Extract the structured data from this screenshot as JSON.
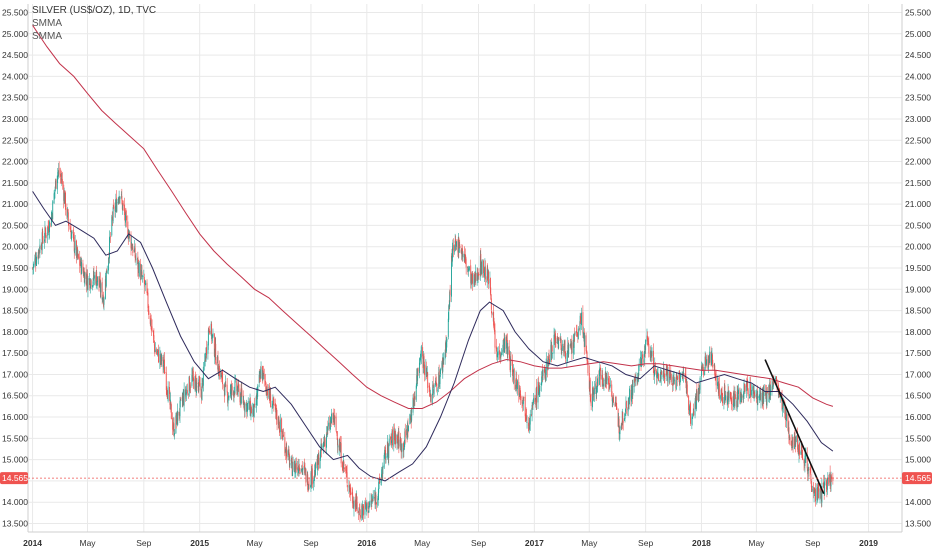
{
  "legend": {
    "title": "SILVER (US$/OZ), 1D, TVC",
    "ind1": "SMMA",
    "ind2": "SMMA"
  },
  "price_tag": "14.565",
  "colors": {
    "up": "#26a69a",
    "down": "#ef5350",
    "smma_fast": "#2e2a5c",
    "smma_slow": "#c2324a",
    "trend": "#111111",
    "price_line": "#ef5350",
    "grid": "#e9e9e9"
  },
  "chart_data": {
    "type": "candlestick",
    "title": "SILVER (US$/OZ), 1D, TVC",
    "x_tick_labels": [
      "2014",
      "May",
      "Sep",
      "2015",
      "May",
      "Sep",
      "2016",
      "May",
      "Sep",
      "2017",
      "May",
      "Sep",
      "2018",
      "May",
      "Sep",
      "2019"
    ],
    "y_ticks": [
      "13.500",
      "14.000",
      "14.500",
      "15.000",
      "15.500",
      "16.000",
      "16.500",
      "17.000",
      "17.500",
      "18.000",
      "18.500",
      "19.000",
      "19.500",
      "20.000",
      "20.500",
      "21.000",
      "21.500",
      "22.000",
      "22.500",
      "23.000",
      "23.500",
      "24.000",
      "24.500",
      "25.000",
      "25.500"
    ],
    "ylim": [
      13.3,
      25.7
    ],
    "last_price": 14.565,
    "close_path": [
      [
        "2014-01-01",
        19.5
      ],
      [
        "2014-01-20",
        20.1
      ],
      [
        "2014-02-10",
        20.6
      ],
      [
        "2014-02-24",
        21.8
      ],
      [
        "2014-03-05",
        21.6
      ],
      [
        "2014-03-20",
        20.6
      ],
      [
        "2014-04-10",
        19.7
      ],
      [
        "2014-05-01",
        19.2
      ],
      [
        "2014-05-20",
        19.3
      ],
      [
        "2014-06-05",
        18.8
      ],
      [
        "2014-06-25",
        20.7
      ],
      [
        "2014-07-10",
        21.3
      ],
      [
        "2014-07-25",
        20.5
      ],
      [
        "2014-08-15",
        19.7
      ],
      [
        "2014-09-05",
        19.0
      ],
      [
        "2014-09-25",
        17.6
      ],
      [
        "2014-10-15",
        17.2
      ],
      [
        "2014-11-05",
        15.7
      ],
      [
        "2014-11-25",
        16.4
      ],
      [
        "2014-12-15",
        16.9
      ],
      [
        "2015-01-05",
        16.6
      ],
      [
        "2015-01-22",
        18.2
      ],
      [
        "2015-02-10",
        17.2
      ],
      [
        "2015-03-01",
        16.5
      ],
      [
        "2015-03-20",
        16.7
      ],
      [
        "2015-04-10",
        16.3
      ],
      [
        "2015-05-01",
        16.1
      ],
      [
        "2015-05-15",
        17.1
      ],
      [
        "2015-06-05",
        16.4
      ],
      [
        "2015-06-25",
        15.8
      ],
      [
        "2015-07-20",
        14.8
      ],
      [
        "2015-08-10",
        14.9
      ],
      [
        "2015-08-25",
        14.5
      ],
      [
        "2015-09-10",
        14.7
      ],
      [
        "2015-10-05",
        15.6
      ],
      [
        "2015-10-20",
        16.0
      ],
      [
        "2015-11-10",
        14.9
      ],
      [
        "2015-12-01",
        14.1
      ],
      [
        "2015-12-15",
        13.8
      ],
      [
        "2016-01-05",
        13.9
      ],
      [
        "2016-01-25",
        14.2
      ],
      [
        "2016-02-10",
        15.1
      ],
      [
        "2016-03-01",
        15.6
      ],
      [
        "2016-03-20",
        15.3
      ],
      [
        "2016-04-10",
        16.2
      ],
      [
        "2016-04-28",
        17.6
      ],
      [
        "2016-05-20",
        16.5
      ],
      [
        "2016-06-10",
        17.0
      ],
      [
        "2016-06-25",
        17.9
      ],
      [
        "2016-07-05",
        19.8
      ],
      [
        "2016-07-20",
        20.1
      ],
      [
        "2016-08-05",
        19.6
      ],
      [
        "2016-08-20",
        19.1
      ],
      [
        "2016-09-05",
        19.6
      ],
      [
        "2016-09-25",
        19.2
      ],
      [
        "2016-10-10",
        17.4
      ],
      [
        "2016-10-30",
        17.8
      ],
      [
        "2016-11-15",
        17.0
      ],
      [
        "2016-12-05",
        16.5
      ],
      [
        "2016-12-20",
        15.9
      ],
      [
        "2017-01-05",
        16.5
      ],
      [
        "2017-01-25",
        17.1
      ],
      [
        "2017-02-15",
        17.9
      ],
      [
        "2017-03-05",
        17.6
      ],
      [
        "2017-03-20",
        17.5
      ],
      [
        "2017-04-15",
        18.3
      ],
      [
        "2017-05-05",
        16.4
      ],
      [
        "2017-05-25",
        17.0
      ],
      [
        "2017-06-15",
        16.8
      ],
      [
        "2017-07-05",
        15.8
      ],
      [
        "2017-07-25",
        16.4
      ],
      [
        "2017-08-15",
        17.0
      ],
      [
        "2017-09-05",
        17.8
      ],
      [
        "2017-09-25",
        16.9
      ],
      [
        "2017-10-15",
        17.1
      ],
      [
        "2017-11-05",
        16.8
      ],
      [
        "2017-11-25",
        17.0
      ],
      [
        "2017-12-10",
        15.9
      ],
      [
        "2018-01-05",
        17.2
      ],
      [
        "2018-01-25",
        17.4
      ],
      [
        "2018-02-10",
        16.5
      ],
      [
        "2018-03-01",
        16.5
      ],
      [
        "2018-03-20",
        16.4
      ],
      [
        "2018-04-10",
        16.7
      ],
      [
        "2018-04-30",
        16.5
      ],
      [
        "2018-05-20",
        16.4
      ],
      [
        "2018-06-10",
        16.9
      ],
      [
        "2018-06-28",
        16.2
      ],
      [
        "2018-07-15",
        15.5
      ],
      [
        "2018-08-05",
        15.3
      ],
      [
        "2018-08-20",
        14.9
      ],
      [
        "2018-09-05",
        14.2
      ],
      [
        "2018-09-20",
        14.2
      ],
      [
        "2018-10-05",
        14.5
      ],
      [
        "2018-10-15",
        14.6
      ]
    ],
    "smma_fast": [
      [
        "2014-01-01",
        21.3
      ],
      [
        "2014-01-25",
        20.9
      ],
      [
        "2014-02-20",
        20.5
      ],
      [
        "2014-03-15",
        20.6
      ],
      [
        "2014-04-15",
        20.4
      ],
      [
        "2014-05-15",
        20.2
      ],
      [
        "2014-06-10",
        19.8
      ],
      [
        "2014-07-05",
        19.9
      ],
      [
        "2014-07-30",
        20.3
      ],
      [
        "2014-08-25",
        20.1
      ],
      [
        "2014-09-20",
        19.5
      ],
      [
        "2014-10-20",
        18.7
      ],
      [
        "2014-11-20",
        17.9
      ],
      [
        "2014-12-20",
        17.3
      ],
      [
        "2015-01-20",
        16.9
      ],
      [
        "2015-02-20",
        17.1
      ],
      [
        "2015-03-20",
        16.9
      ],
      [
        "2015-04-20",
        16.7
      ],
      [
        "2015-05-20",
        16.6
      ],
      [
        "2015-06-15",
        16.7
      ],
      [
        "2015-07-20",
        16.3
      ],
      [
        "2015-08-20",
        15.8
      ],
      [
        "2015-09-20",
        15.3
      ],
      [
        "2015-10-20",
        15.0
      ],
      [
        "2015-11-20",
        15.1
      ],
      [
        "2015-12-15",
        14.8
      ],
      [
        "2016-01-10",
        14.6
      ],
      [
        "2016-02-10",
        14.5
      ],
      [
        "2016-03-10",
        14.7
      ],
      [
        "2016-04-10",
        14.9
      ],
      [
        "2016-05-10",
        15.3
      ],
      [
        "2016-06-10",
        16.0
      ],
      [
        "2016-07-10",
        16.8
      ],
      [
        "2016-08-10",
        17.8
      ],
      [
        "2016-09-05",
        18.5
      ],
      [
        "2016-09-25",
        18.7
      ],
      [
        "2016-10-25",
        18.5
      ],
      [
        "2016-11-20",
        18.0
      ],
      [
        "2016-12-20",
        17.6
      ],
      [
        "2017-01-20",
        17.3
      ],
      [
        "2017-02-20",
        17.2
      ],
      [
        "2017-03-20",
        17.3
      ],
      [
        "2017-04-20",
        17.4
      ],
      [
        "2017-05-20",
        17.3
      ],
      [
        "2017-06-20",
        17.2
      ],
      [
        "2017-07-20",
        17.0
      ],
      [
        "2017-08-20",
        16.9
      ],
      [
        "2017-09-20",
        17.2
      ],
      [
        "2017-10-20",
        17.1
      ],
      [
        "2017-11-20",
        17.0
      ],
      [
        "2017-12-20",
        16.8
      ],
      [
        "2018-01-20",
        16.9
      ],
      [
        "2018-02-20",
        17.0
      ],
      [
        "2018-03-20",
        16.9
      ],
      [
        "2018-04-20",
        16.8
      ],
      [
        "2018-05-20",
        16.6
      ],
      [
        "2018-06-20",
        16.6
      ],
      [
        "2018-07-20",
        16.3
      ],
      [
        "2018-08-20",
        15.9
      ],
      [
        "2018-09-20",
        15.4
      ],
      [
        "2018-10-15",
        15.2
      ]
    ],
    "smma_slow": [
      [
        "2014-01-01",
        25.2
      ],
      [
        "2014-02-01",
        24.7
      ],
      [
        "2014-03-01",
        24.3
      ],
      [
        "2014-04-01",
        24.0
      ],
      [
        "2014-05-01",
        23.6
      ],
      [
        "2014-06-01",
        23.2
      ],
      [
        "2014-07-01",
        22.9
      ],
      [
        "2014-08-01",
        22.6
      ],
      [
        "2014-09-01",
        22.3
      ],
      [
        "2014-10-01",
        21.8
      ],
      [
        "2014-11-01",
        21.3
      ],
      [
        "2014-12-01",
        20.8
      ],
      [
        "2015-01-01",
        20.3
      ],
      [
        "2015-02-01",
        19.9
      ],
      [
        "2015-03-01",
        19.6
      ],
      [
        "2015-04-01",
        19.3
      ],
      [
        "2015-05-01",
        19.0
      ],
      [
        "2015-06-01",
        18.8
      ],
      [
        "2015-07-01",
        18.5
      ],
      [
        "2015-08-01",
        18.2
      ],
      [
        "2015-09-01",
        17.9
      ],
      [
        "2015-10-01",
        17.6
      ],
      [
        "2015-11-01",
        17.3
      ],
      [
        "2015-12-01",
        17.0
      ],
      [
        "2016-01-01",
        16.7
      ],
      [
        "2016-02-01",
        16.5
      ],
      [
        "2016-03-01",
        16.35
      ],
      [
        "2016-04-01",
        16.2
      ],
      [
        "2016-05-01",
        16.2
      ],
      [
        "2016-06-01",
        16.35
      ],
      [
        "2016-07-01",
        16.6
      ],
      [
        "2016-08-01",
        16.9
      ],
      [
        "2016-09-01",
        17.1
      ],
      [
        "2016-10-01",
        17.25
      ],
      [
        "2016-11-01",
        17.35
      ],
      [
        "2016-12-01",
        17.3
      ],
      [
        "2017-01-01",
        17.2
      ],
      [
        "2017-02-01",
        17.15
      ],
      [
        "2017-03-01",
        17.15
      ],
      [
        "2017-04-01",
        17.2
      ],
      [
        "2017-05-01",
        17.25
      ],
      [
        "2017-06-01",
        17.3
      ],
      [
        "2017-07-01",
        17.25
      ],
      [
        "2017-08-01",
        17.2
      ],
      [
        "2017-09-01",
        17.25
      ],
      [
        "2017-10-01",
        17.25
      ],
      [
        "2017-11-01",
        17.2
      ],
      [
        "2017-12-01",
        17.15
      ],
      [
        "2018-01-01",
        17.1
      ],
      [
        "2018-02-01",
        17.1
      ],
      [
        "2018-03-01",
        17.05
      ],
      [
        "2018-04-01",
        17.0
      ],
      [
        "2018-05-01",
        16.95
      ],
      [
        "2018-06-01",
        16.9
      ],
      [
        "2018-07-01",
        16.8
      ],
      [
        "2018-08-01",
        16.7
      ],
      [
        "2018-09-01",
        16.45
      ],
      [
        "2018-10-01",
        16.3
      ],
      [
        "2018-10-15",
        16.25
      ]
    ],
    "trend_line": [
      [
        "2018-05-20",
        17.35
      ],
      [
        "2018-09-25",
        14.2
      ]
    ],
    "x_range": [
      "2013-12-22",
      "2019-03-15"
    ],
    "grid": true,
    "legend_position": "top-left"
  }
}
